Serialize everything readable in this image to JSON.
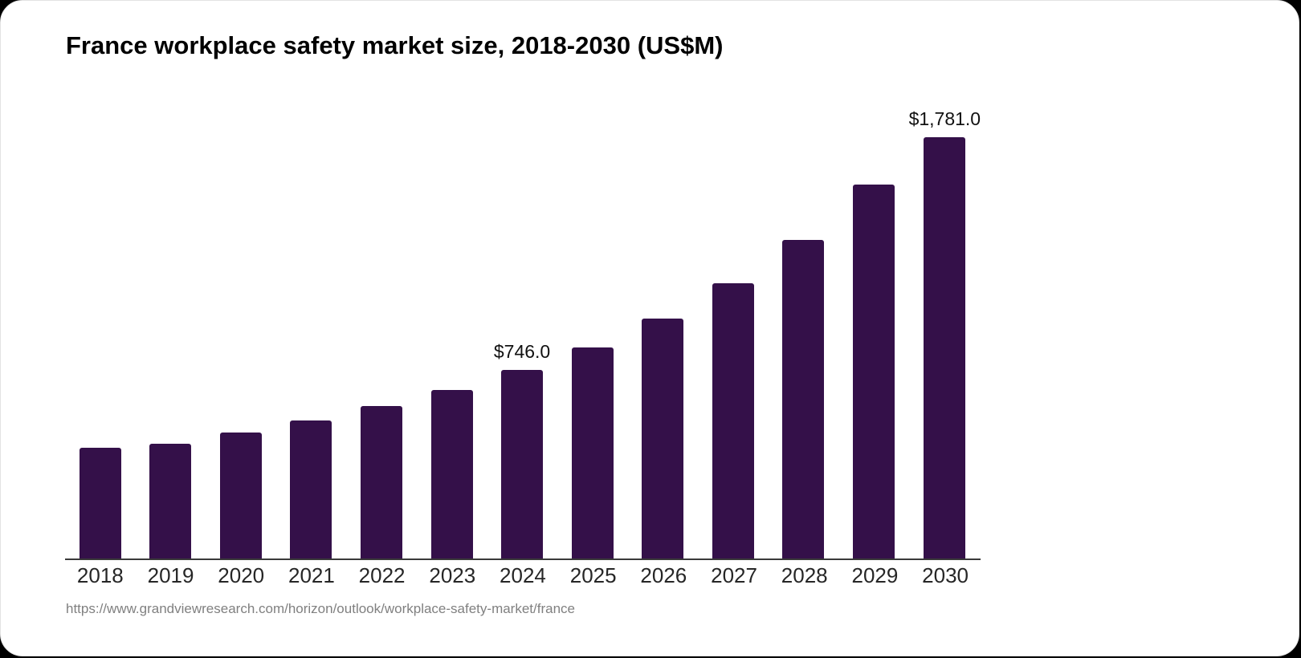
{
  "card": {
    "title": "France workplace safety market size, 2018-2030 (US$M)",
    "source_url": "https://www.grandviewresearch.com/horizon/outlook/workplace-safety-market/france"
  },
  "chart_data": {
    "type": "bar",
    "title": "France workplace safety market size, 2018-2030 (US$M)",
    "unit": "US$M",
    "categories": [
      "2018",
      "2019",
      "2020",
      "2021",
      "2022",
      "2023",
      "2024",
      "2025",
      "2026",
      "2027",
      "2028",
      "2029",
      "2030"
    ],
    "values": [
      438,
      454,
      498,
      546,
      603,
      667,
      746,
      835,
      949,
      1089,
      1260,
      1479,
      1781
    ],
    "data_labels": [
      "",
      "",
      "",
      "",
      "",
      "",
      "$746.0",
      "",
      "",
      "",
      "",
      "",
      "$1,781.0"
    ],
    "xlabel": "",
    "ylabel": "",
    "ylim": [
      0,
      1781
    ],
    "grid": false,
    "legend": false,
    "bar_color": "#341049",
    "axis_color": "#3a3a3a",
    "label_color": "#111111",
    "tick_color": "#262626"
  }
}
